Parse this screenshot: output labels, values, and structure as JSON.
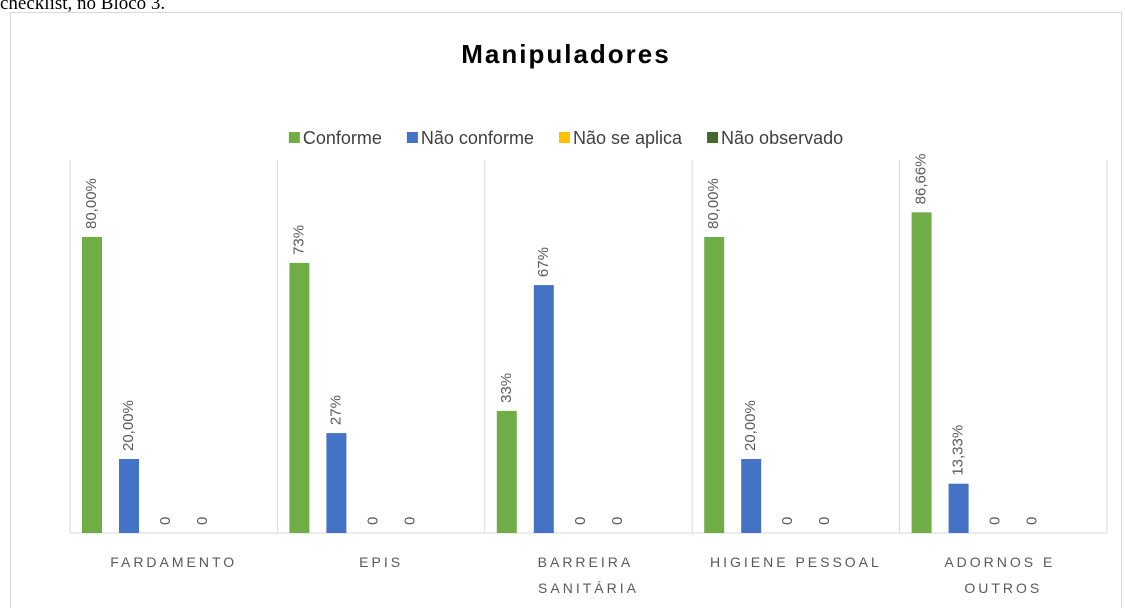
{
  "caption": "checklist, no Bloco 3.",
  "chart_data": {
    "type": "bar",
    "title": "Manipuladores",
    "categories": [
      "FARDAMENTO",
      "EPIS",
      "BARREIRA SANITÁRIA",
      "HIGIENE PESSOAL",
      "ADORNOS E OUTROS"
    ],
    "series": [
      {
        "name": "Conforme",
        "color": "#70ad47",
        "values": [
          80,
          73,
          33,
          80,
          86.66
        ],
        "value_labels": [
          "80,00%",
          "73%",
          "33%",
          "80,00%",
          "86,66%"
        ]
      },
      {
        "name": "Não conforme",
        "color": "#4472c4",
        "values": [
          20,
          27,
          67,
          20,
          13.33
        ],
        "value_labels": [
          "20,00%",
          "27%",
          "67%",
          "20,00%",
          "13,33%"
        ]
      },
      {
        "name": "Não se aplica",
        "color": "#ffc000",
        "values": [
          0,
          0,
          0,
          0,
          0
        ]
      },
      {
        "name": "Não observado",
        "color": "#43682b",
        "values": [
          0,
          0,
          0,
          0,
          0
        ]
      }
    ],
    "ylim": [
      0,
      100
    ],
    "legend": "top"
  }
}
